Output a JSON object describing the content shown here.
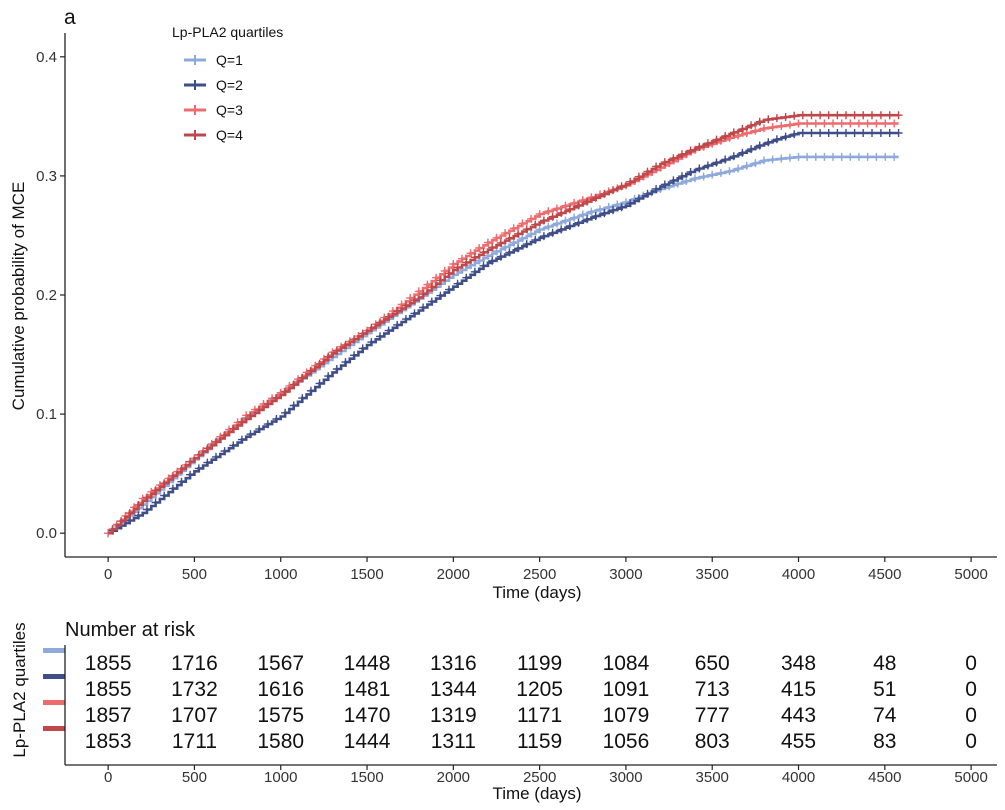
{
  "panel_label": "a",
  "chart_data": {
    "type": "line",
    "title": "",
    "xlabel": "Time (days)",
    "ylabel": "Cumulative probability of MCE",
    "xlim": [
      -250,
      5150
    ],
    "ylim": [
      -0.02,
      0.42
    ],
    "x_ticks": [
      0,
      500,
      1000,
      1500,
      2000,
      2500,
      3000,
      3500,
      4000,
      4500,
      5000
    ],
    "y_ticks": [
      0.0,
      0.1,
      0.2,
      0.3,
      0.4
    ],
    "y_tick_labels": [
      "0.0",
      "0.1",
      "0.2",
      "0.3",
      "0.4"
    ],
    "grid": false,
    "legend": {
      "title": "Lp-PLA2  quartiles",
      "placement": "top-left"
    },
    "series": [
      {
        "name": "Q=1",
        "color": "#8ea9db",
        "x": [
          0,
          200,
          500,
          800,
          1000,
          1300,
          1500,
          1800,
          2000,
          2200,
          2500,
          2800,
          3000,
          3200,
          3400,
          3600,
          3800,
          4000,
          4200,
          4400,
          4580
        ],
        "y": [
          0,
          0.024,
          0.062,
          0.097,
          0.117,
          0.148,
          0.168,
          0.197,
          0.217,
          0.233,
          0.255,
          0.27,
          0.278,
          0.289,
          0.298,
          0.304,
          0.313,
          0.316,
          0.316,
          0.316,
          0.316
        ]
      },
      {
        "name": "Q=2",
        "color": "#3f4e88",
        "x": [
          0,
          200,
          500,
          800,
          1000,
          1300,
          1500,
          1800,
          2000,
          2200,
          2500,
          2800,
          3000,
          3200,
          3400,
          3600,
          3800,
          3900,
          4000,
          4200,
          4400,
          4580
        ],
        "y": [
          0,
          0.017,
          0.052,
          0.081,
          0.098,
          0.135,
          0.158,
          0.187,
          0.207,
          0.227,
          0.248,
          0.265,
          0.275,
          0.291,
          0.305,
          0.315,
          0.327,
          0.332,
          0.336,
          0.336,
          0.336,
          0.336
        ]
      },
      {
        "name": "Q=3",
        "color": "#ee6b6e",
        "x": [
          0,
          200,
          500,
          800,
          1000,
          1300,
          1500,
          1800,
          2000,
          2200,
          2500,
          2800,
          3000,
          3200,
          3400,
          3600,
          3800,
          4000,
          4200,
          4400,
          4580
        ],
        "y": [
          0,
          0.029,
          0.063,
          0.099,
          0.118,
          0.152,
          0.17,
          0.203,
          0.226,
          0.244,
          0.268,
          0.282,
          0.292,
          0.307,
          0.322,
          0.332,
          0.34,
          0.344,
          0.344,
          0.344,
          0.344
        ]
      },
      {
        "name": "Q=4",
        "color": "#c0474a",
        "x": [
          0,
          200,
          500,
          800,
          1000,
          1300,
          1500,
          1800,
          2000,
          2200,
          2500,
          2800,
          3000,
          3200,
          3400,
          3600,
          3800,
          4000,
          4200,
          4400,
          4580
        ],
        "y": [
          0,
          0.027,
          0.063,
          0.096,
          0.116,
          0.151,
          0.17,
          0.198,
          0.221,
          0.238,
          0.261,
          0.28,
          0.293,
          0.31,
          0.323,
          0.335,
          0.347,
          0.351,
          0.351,
          0.351,
          0.351
        ]
      }
    ]
  },
  "risk_table": {
    "title": "Number at risk",
    "ylabel": "Lp-PLA2  quartiles",
    "xlabel": "Time (days)",
    "times": [
      0,
      500,
      1000,
      1500,
      2000,
      2500,
      3000,
      3500,
      4000,
      4500,
      5000
    ],
    "x_tick_labels": [
      "0",
      "500",
      "1000",
      "1500",
      "2000",
      "2500",
      "3000",
      "3500",
      "4000",
      "4500",
      "5000"
    ],
    "rows": [
      {
        "color": "#8ea9db",
        "values": [
          "1855",
          "1716",
          "1567",
          "1448",
          "1316",
          "1199",
          "1084",
          "650",
          "348",
          "48",
          "0"
        ]
      },
      {
        "color": "#3f4e88",
        "values": [
          "1855",
          "1732",
          "1616",
          "1481",
          "1344",
          "1205",
          "1091",
          "713",
          "415",
          "51",
          "0"
        ]
      },
      {
        "color": "#ee6b6e",
        "values": [
          "1857",
          "1707",
          "1575",
          "1470",
          "1319",
          "1171",
          "1079",
          "777",
          "443",
          "74",
          "0"
        ]
      },
      {
        "color": "#c0474a",
        "values": [
          "1853",
          "1711",
          "1580",
          "1444",
          "1311",
          "1159",
          "1056",
          "803",
          "455",
          "83",
          "0"
        ]
      }
    ]
  }
}
